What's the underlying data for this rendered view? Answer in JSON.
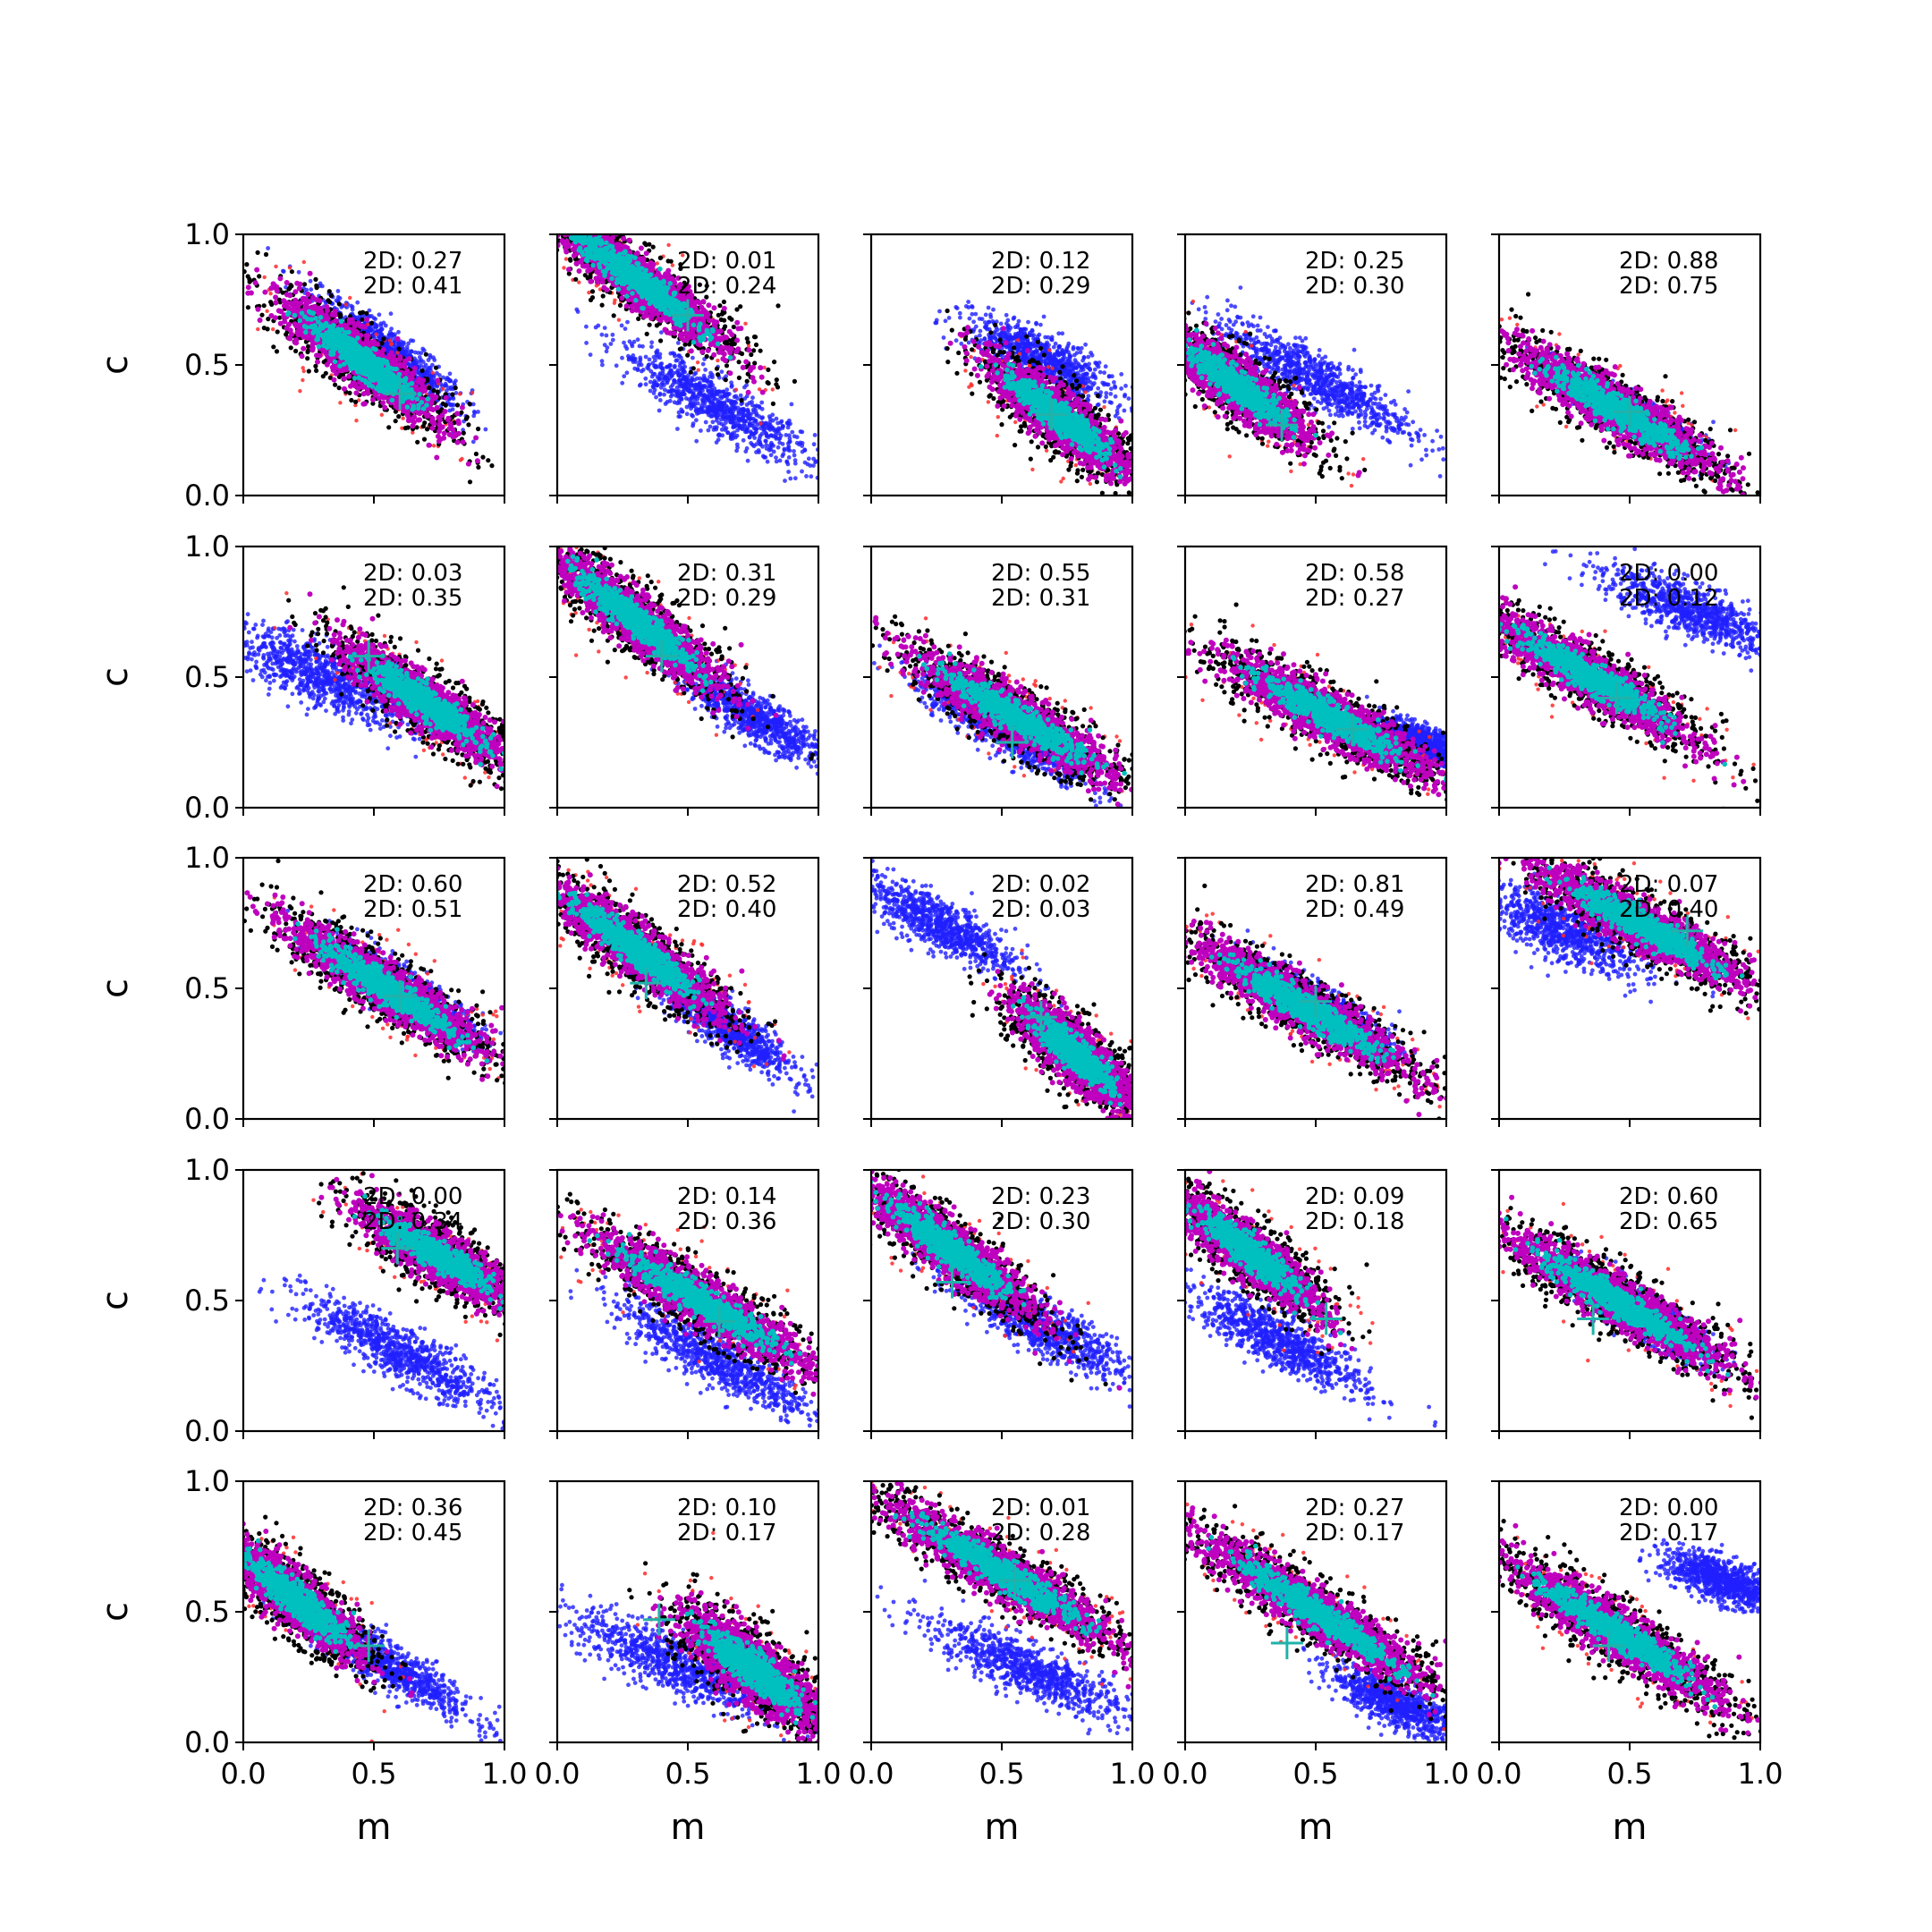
{
  "chart_data": {
    "type": "scatter",
    "grid": false,
    "xlabel": "m",
    "ylabel": "c",
    "xlim": [
      0,
      1
    ],
    "ylim": [
      0,
      1
    ],
    "x_ticks": [
      "0.0",
      "0.5",
      "1.0"
    ],
    "y_ticks": [
      "0.0",
      "0.5",
      "1.0"
    ],
    "colors": {
      "blue_points": "#1f1fff",
      "red_points": "#ff2a2a",
      "black_points": "#000000",
      "magenta_points": "#bf00bf",
      "cyan_points": "#00bfbf",
      "marker": "#20b2aa"
    },
    "panels": [
      {
        "row": 0,
        "col": 0,
        "annot": [
          "2D: 0.27",
          "2D: 0.41"
        ],
        "main": {
          "cx": 0.45,
          "cy": 0.52,
          "slope": -0.75,
          "len": 0.5,
          "w": 0.12
        },
        "blue": {
          "cx": 0.55,
          "cy": 0.55,
          "slope": -0.75,
          "len": 0.45,
          "w": 0.1
        },
        "cross": [
          0.6,
          0.39
        ]
      },
      {
        "row": 0,
        "col": 1,
        "annot": [
          "2D: 0.01",
          "2D: 0.24"
        ],
        "main": {
          "cx": 0.3,
          "cy": 0.83,
          "slope": -0.75,
          "len": 0.6,
          "w": 0.12
        },
        "blue": {
          "cx": 0.6,
          "cy": 0.35,
          "slope": -0.6,
          "len": 0.55,
          "w": 0.12
        },
        "cross": [
          0.5,
          0.69
        ]
      },
      {
        "row": 0,
        "col": 2,
        "annot": [
          "2D: 0.12",
          "2D: 0.29"
        ],
        "main": {
          "cx": 0.72,
          "cy": 0.3,
          "slope": -0.8,
          "len": 0.45,
          "w": 0.12
        },
        "blue": {
          "cx": 0.65,
          "cy": 0.52,
          "slope": -0.5,
          "len": 0.4,
          "w": 0.12
        },
        "cross": [
          0.69,
          0.31
        ]
      },
      {
        "row": 0,
        "col": 3,
        "annot": [
          "2D: 0.25",
          "2D: 0.30"
        ],
        "main": {
          "cx": 0.2,
          "cy": 0.42,
          "slope": -0.75,
          "len": 0.45,
          "w": 0.12
        },
        "blue": {
          "cx": 0.5,
          "cy": 0.45,
          "slope": -0.55,
          "len": 0.55,
          "w": 0.12
        },
        "cross": [
          0.37,
          0.27
        ]
      },
      {
        "row": 0,
        "col": 4,
        "annot": [
          "2D: 0.88",
          "2D: 0.75"
        ],
        "main": {
          "cx": 0.45,
          "cy": 0.33,
          "slope": -0.6,
          "len": 0.6,
          "w": 0.12
        },
        "blue": {
          "cx": 0.5,
          "cy": 0.32,
          "slope": -0.6,
          "len": 0.4,
          "w": 0.08
        },
        "cross": [
          0.5,
          0.32
        ]
      },
      {
        "row": 1,
        "col": 0,
        "annot": [
          "2D: 0.03",
          "2D: 0.35"
        ],
        "main": {
          "cx": 0.7,
          "cy": 0.4,
          "slope": -0.7,
          "len": 0.5,
          "w": 0.12
        },
        "blue": {
          "cx": 0.3,
          "cy": 0.5,
          "slope": -0.5,
          "len": 0.5,
          "w": 0.14
        },
        "cross": [
          0.48,
          0.58
        ]
      },
      {
        "row": 1,
        "col": 1,
        "annot": [
          "2D: 0.31",
          "2D: 0.29"
        ],
        "main": {
          "cx": 0.3,
          "cy": 0.72,
          "slope": -0.8,
          "len": 0.55,
          "w": 0.12
        },
        "blue": {
          "cx": 0.75,
          "cy": 0.35,
          "slope": -0.6,
          "len": 0.4,
          "w": 0.1
        },
        "cross": [
          0.4,
          0.58
        ]
      },
      {
        "row": 1,
        "col": 2,
        "annot": [
          "2D: 0.55",
          "2D: 0.31"
        ],
        "main": {
          "cx": 0.55,
          "cy": 0.35,
          "slope": -0.6,
          "len": 0.6,
          "w": 0.12
        },
        "blue": {
          "cx": 0.5,
          "cy": 0.3,
          "slope": -0.6,
          "len": 0.5,
          "w": 0.1
        },
        "cross": [
          0.54,
          0.25
        ]
      },
      {
        "row": 1,
        "col": 3,
        "annot": [
          "2D: 0.58",
          "2D: 0.27"
        ],
        "main": {
          "cx": 0.55,
          "cy": 0.35,
          "slope": -0.55,
          "len": 0.6,
          "w": 0.12
        },
        "blue": {
          "cx": 0.9,
          "cy": 0.25,
          "slope": -0.5,
          "len": 0.2,
          "w": 0.08
        },
        "cross": [
          0.64,
          0.3
        ]
      },
      {
        "row": 1,
        "col": 4,
        "annot": [
          "2D: 0.00",
          "2D: 0.12"
        ],
        "main": {
          "cx": 0.35,
          "cy": 0.5,
          "slope": -0.6,
          "len": 0.6,
          "w": 0.12
        },
        "blue": {
          "cx": 0.75,
          "cy": 0.75,
          "slope": -0.4,
          "len": 0.5,
          "w": 0.12
        },
        "cross": [
          0.45,
          0.42
        ]
      },
      {
        "row": 2,
        "col": 0,
        "annot": [
          "2D: 0.60",
          "2D: 0.51"
        ],
        "main": {
          "cx": 0.55,
          "cy": 0.5,
          "slope": -0.65,
          "len": 0.6,
          "w": 0.12
        },
        "blue": {
          "cx": 0.6,
          "cy": 0.5,
          "slope": -0.6,
          "len": 0.45,
          "w": 0.1
        },
        "cross": [
          0.6,
          0.47
        ]
      },
      {
        "row": 2,
        "col": 1,
        "annot": [
          "2D: 0.52",
          "2D: 0.40"
        ],
        "main": {
          "cx": 0.3,
          "cy": 0.65,
          "slope": -0.75,
          "len": 0.55,
          "w": 0.12
        },
        "blue": {
          "cx": 0.65,
          "cy": 0.35,
          "slope": -0.7,
          "len": 0.4,
          "w": 0.1
        },
        "cross": [
          0.34,
          0.52
        ]
      },
      {
        "row": 2,
        "col": 2,
        "annot": [
          "2D: 0.02",
          "2D: 0.03"
        ],
        "main": {
          "cx": 0.78,
          "cy": 0.25,
          "slope": -0.9,
          "len": 0.4,
          "w": 0.12
        },
        "blue": {
          "cx": 0.25,
          "cy": 0.75,
          "slope": -0.55,
          "len": 0.45,
          "w": 0.12
        },
        "cross": [
          0.65,
          0.39
        ]
      },
      {
        "row": 2,
        "col": 3,
        "annot": [
          "2D: 0.81",
          "2D: 0.49"
        ],
        "main": {
          "cx": 0.45,
          "cy": 0.43,
          "slope": -0.6,
          "len": 0.65,
          "w": 0.12
        },
        "blue": {
          "cx": 0.5,
          "cy": 0.45,
          "slope": -0.6,
          "len": 0.4,
          "w": 0.08
        },
        "cross": [
          0.5,
          0.45
        ]
      },
      {
        "row": 2,
        "col": 4,
        "annot": [
          "2D: 0.07",
          "2D: 0.40"
        ],
        "main": {
          "cx": 0.55,
          "cy": 0.74,
          "slope": -0.55,
          "len": 0.6,
          "w": 0.12
        },
        "blue": {
          "cx": 0.25,
          "cy": 0.72,
          "slope": -0.45,
          "len": 0.45,
          "w": 0.14
        },
        "cross": [
          0.72,
          0.72
        ]
      },
      {
        "row": 3,
        "col": 0,
        "annot": [
          "2D: 0.00",
          "2D: 0.34"
        ],
        "main": {
          "cx": 0.75,
          "cy": 0.67,
          "slope": -0.6,
          "len": 0.45,
          "w": 0.12
        },
        "blue": {
          "cx": 0.6,
          "cy": 0.3,
          "slope": -0.55,
          "len": 0.55,
          "w": 0.12
        },
        "cross": [
          0.59,
          0.7
        ]
      },
      {
        "row": 3,
        "col": 1,
        "annot": [
          "2D: 0.14",
          "2D: 0.36"
        ],
        "main": {
          "cx": 0.55,
          "cy": 0.5,
          "slope": -0.6,
          "len": 0.65,
          "w": 0.12
        },
        "blue": {
          "cx": 0.6,
          "cy": 0.28,
          "slope": -0.55,
          "len": 0.55,
          "w": 0.12
        },
        "cross": [
          0.62,
          0.42
        ]
      },
      {
        "row": 3,
        "col": 2,
        "annot": [
          "2D: 0.23",
          "2D: 0.30"
        ],
        "main": {
          "cx": 0.3,
          "cy": 0.7,
          "slope": -0.75,
          "len": 0.55,
          "w": 0.12
        },
        "blue": {
          "cx": 0.65,
          "cy": 0.4,
          "slope": -0.55,
          "len": 0.5,
          "w": 0.12
        },
        "cross": [
          0.31,
          0.57
        ]
      },
      {
        "row": 3,
        "col": 3,
        "annot": [
          "2D: 0.09",
          "2D: 0.18"
        ],
        "main": {
          "cx": 0.25,
          "cy": 0.68,
          "slope": -0.8,
          "len": 0.45,
          "w": 0.12
        },
        "blue": {
          "cx": 0.35,
          "cy": 0.35,
          "slope": -0.55,
          "len": 0.5,
          "w": 0.12
        },
        "cross": [
          0.54,
          0.43
        ]
      },
      {
        "row": 3,
        "col": 4,
        "annot": [
          "2D: 0.60",
          "2D: 0.65"
        ],
        "main": {
          "cx": 0.45,
          "cy": 0.5,
          "slope": -0.6,
          "len": 0.65,
          "w": 0.12
        },
        "blue": {
          "cx": 0.55,
          "cy": 0.45,
          "slope": -0.6,
          "len": 0.4,
          "w": 0.1
        },
        "cross": [
          0.36,
          0.43
        ]
      },
      {
        "row": 4,
        "col": 0,
        "annot": [
          "2D: 0.36",
          "2D: 0.45"
        ],
        "main": {
          "cx": 0.2,
          "cy": 0.55,
          "slope": -0.85,
          "len": 0.45,
          "w": 0.12
        },
        "blue": {
          "cx": 0.55,
          "cy": 0.3,
          "slope": -0.6,
          "len": 0.5,
          "w": 0.1
        },
        "cross": [
          0.48,
          0.37
        ]
      },
      {
        "row": 4,
        "col": 1,
        "annot": [
          "2D: 0.10",
          "2D: 0.17"
        ],
        "main": {
          "cx": 0.75,
          "cy": 0.28,
          "slope": -0.8,
          "len": 0.45,
          "w": 0.14
        },
        "blue": {
          "cx": 0.45,
          "cy": 0.3,
          "slope": -0.45,
          "len": 0.55,
          "w": 0.14
        },
        "cross": [
          0.39,
          0.47
        ]
      },
      {
        "row": 4,
        "col": 2,
        "annot": [
          "2D: 0.01",
          "2D: 0.28"
        ],
        "main": {
          "cx": 0.5,
          "cy": 0.65,
          "slope": -0.6,
          "len": 0.7,
          "w": 0.12
        },
        "blue": {
          "cx": 0.6,
          "cy": 0.28,
          "slope": -0.45,
          "len": 0.55,
          "w": 0.12
        },
        "cross": [
          0.55,
          0.62
        ]
      },
      {
        "row": 4,
        "col": 3,
        "annot": [
          "2D: 0.27",
          "2D: 0.17"
        ],
        "main": {
          "cx": 0.5,
          "cy": 0.5,
          "slope": -0.65,
          "len": 0.7,
          "w": 0.12
        },
        "blue": {
          "cx": 0.8,
          "cy": 0.15,
          "slope": -0.5,
          "len": 0.35,
          "w": 0.1
        },
        "cross": [
          0.39,
          0.38
        ]
      },
      {
        "row": 4,
        "col": 4,
        "annot": [
          "2D: 0.00",
          "2D: 0.17"
        ],
        "main": {
          "cx": 0.45,
          "cy": 0.42,
          "slope": -0.65,
          "len": 0.65,
          "w": 0.12
        },
        "blue": {
          "cx": 0.85,
          "cy": 0.62,
          "slope": -0.4,
          "len": 0.3,
          "w": 0.1
        },
        "cross": [
          0.42,
          0.37
        ]
      }
    ]
  }
}
